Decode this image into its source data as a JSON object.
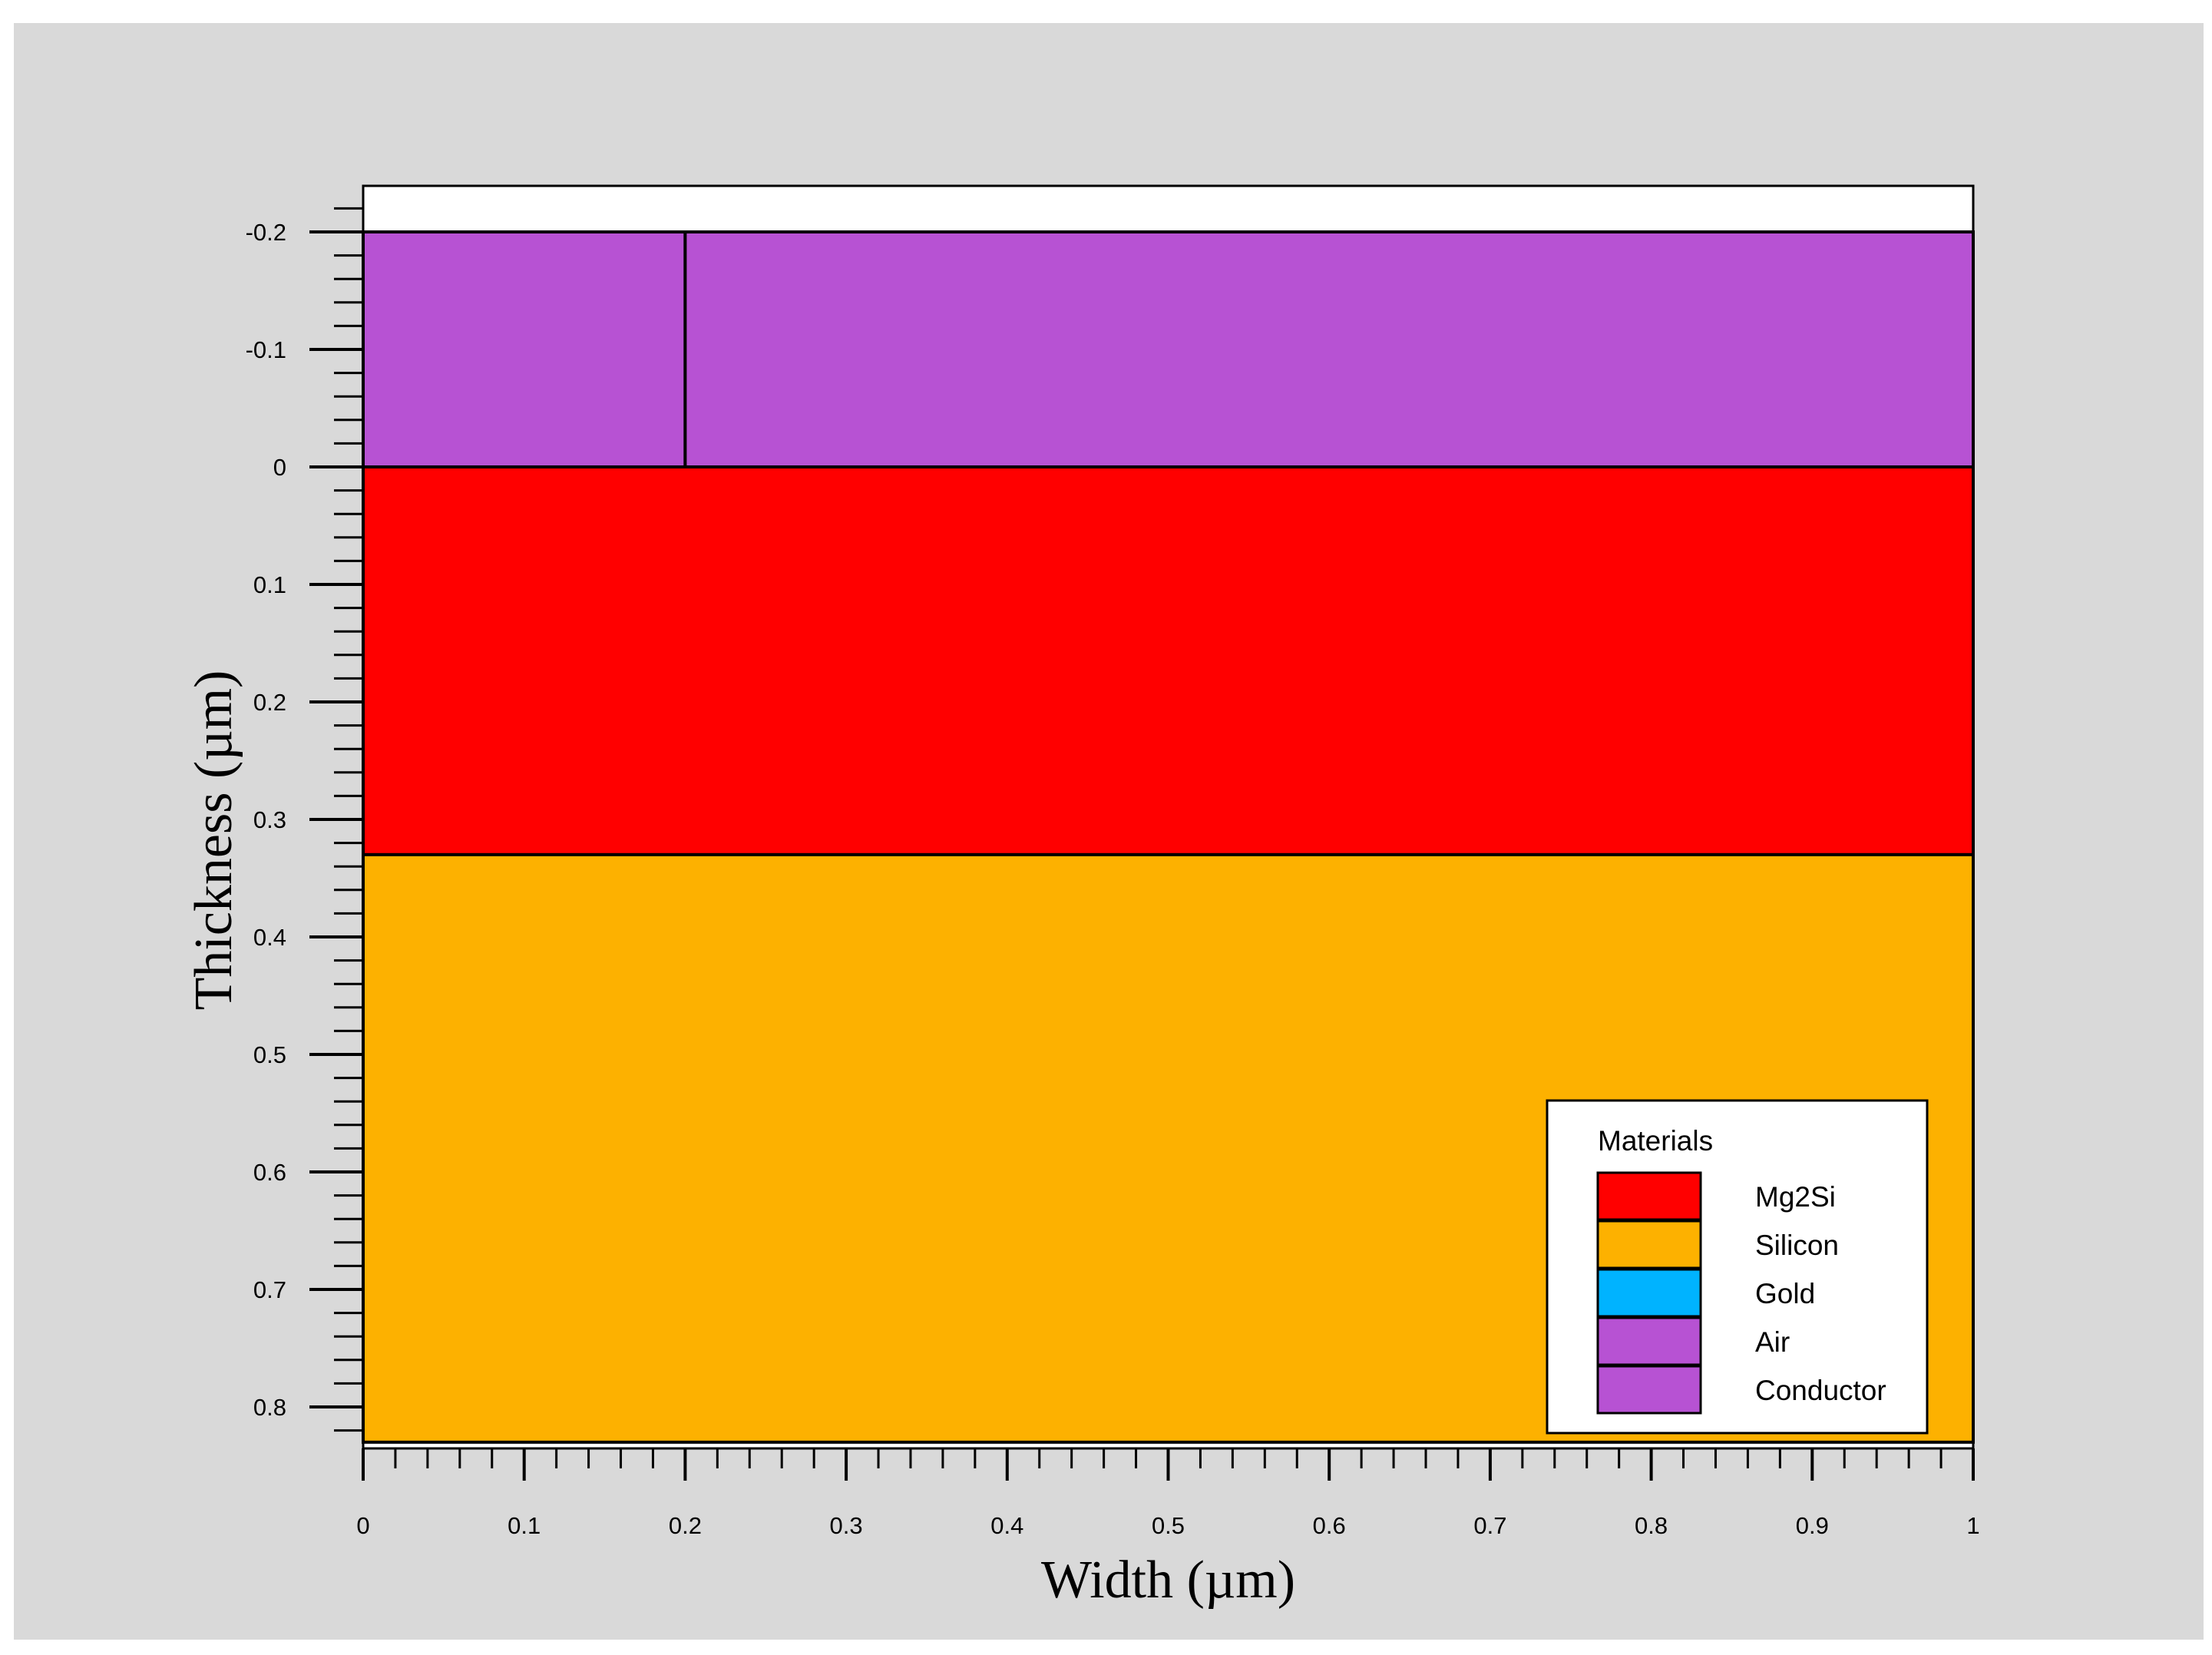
{
  "chart_data": {
    "type": "cross-section",
    "xlabel": "Width (µm)",
    "ylabel": "Thickness (µm)",
    "xlim": [
      0,
      1
    ],
    "ylim": [
      -0.24,
      0.83
    ],
    "y_inverted": true,
    "x_ticks": [
      {
        "value": 0,
        "label": "0"
      },
      {
        "value": 0.1,
        "label": "0.1"
      },
      {
        "value": 0.2,
        "label": "0.2"
      },
      {
        "value": 0.3,
        "label": "0.3"
      },
      {
        "value": 0.4,
        "label": "0.4"
      },
      {
        "value": 0.5,
        "label": "0.5"
      },
      {
        "value": 0.6,
        "label": "0.6"
      },
      {
        "value": 0.7,
        "label": "0.7"
      },
      {
        "value": 0.8,
        "label": "0.8"
      },
      {
        "value": 0.9,
        "label": "0.9"
      },
      {
        "value": 1,
        "label": "1"
      }
    ],
    "y_ticks": [
      {
        "value": -0.2,
        "label": "-0.2"
      },
      {
        "value": -0.1,
        "label": "-0.1"
      },
      {
        "value": 0,
        "label": "0"
      },
      {
        "value": 0.1,
        "label": "0.1"
      },
      {
        "value": 0.2,
        "label": "0.2"
      },
      {
        "value": 0.3,
        "label": "0.3"
      },
      {
        "value": 0.4,
        "label": "0.4"
      },
      {
        "value": 0.5,
        "label": "0.5"
      },
      {
        "value": 0.6,
        "label": "0.6"
      },
      {
        "value": 0.7,
        "label": "0.7"
      },
      {
        "value": 0.8,
        "label": "0.8"
      }
    ],
    "minor_ticks_per_major": 4,
    "regions": [
      {
        "material": "Conductor",
        "x": [
          0,
          0.2
        ],
        "y": [
          -0.2,
          0
        ]
      },
      {
        "material": "Air",
        "x": [
          0.2,
          1
        ],
        "y": [
          -0.2,
          0
        ]
      },
      {
        "material": "Mg2Si",
        "x": [
          0,
          1
        ],
        "y": [
          0,
          0.33
        ]
      },
      {
        "material": "Silicon",
        "x": [
          0,
          1
        ],
        "y": [
          0.33,
          0.83
        ]
      }
    ],
    "legend": {
      "title": "Materials",
      "position": "bottom-right",
      "items": [
        {
          "label": "Mg2Si",
          "color": "#ff0000"
        },
        {
          "label": "Silicon",
          "color": "#fdb100"
        },
        {
          "label": "Gold",
          "color": "#00b3ff"
        },
        {
          "label": "Air",
          "color": "#b752d3"
        },
        {
          "label": "Conductor",
          "color": "#b752d3"
        }
      ]
    }
  }
}
